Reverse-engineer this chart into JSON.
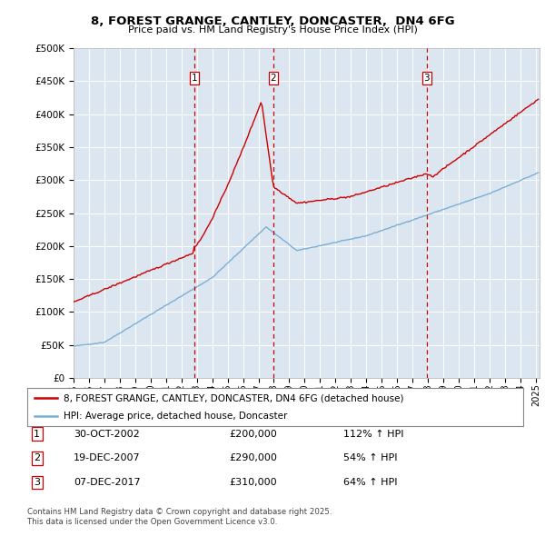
{
  "title": "8, FOREST GRANGE, CANTLEY, DONCASTER,  DN4 6FG",
  "subtitle": "Price paid vs. HM Land Registry's House Price Index (HPI)",
  "sale_dates": [
    "2002-10-30",
    "2007-12-19",
    "2017-12-07"
  ],
  "sale_prices": [
    200000,
    290000,
    310000
  ],
  "sale_labels": [
    "1",
    "2",
    "3"
  ],
  "sale_dates_display": [
    "30-OCT-2002",
    "19-DEC-2007",
    "07-DEC-2017"
  ],
  "sale_prices_display": [
    "£200,000",
    "£290,000",
    "£310,000"
  ],
  "sale_pct_display": [
    "112% ↑ HPI",
    "54% ↑ HPI",
    "64% ↑ HPI"
  ],
  "legend_property": "8, FOREST GRANGE, CANTLEY, DONCASTER, DN4 6FG (detached house)",
  "legend_hpi": "HPI: Average price, detached house, Doncaster",
  "footer_line1": "Contains HM Land Registry data © Crown copyright and database right 2025.",
  "footer_line2": "This data is licensed under the Open Government Licence v3.0.",
  "property_color": "#cc0000",
  "hpi_color": "#7bafd4",
  "vline_color": "#cc0000",
  "plot_bg_color": "#dce6f1",
  "grid_color": "#ffffff",
  "ylim": [
    0,
    500000
  ],
  "yticks": [
    0,
    50000,
    100000,
    150000,
    200000,
    250000,
    300000,
    350000,
    400000,
    450000,
    500000
  ],
  "start_year": 1995,
  "end_year": 2025
}
